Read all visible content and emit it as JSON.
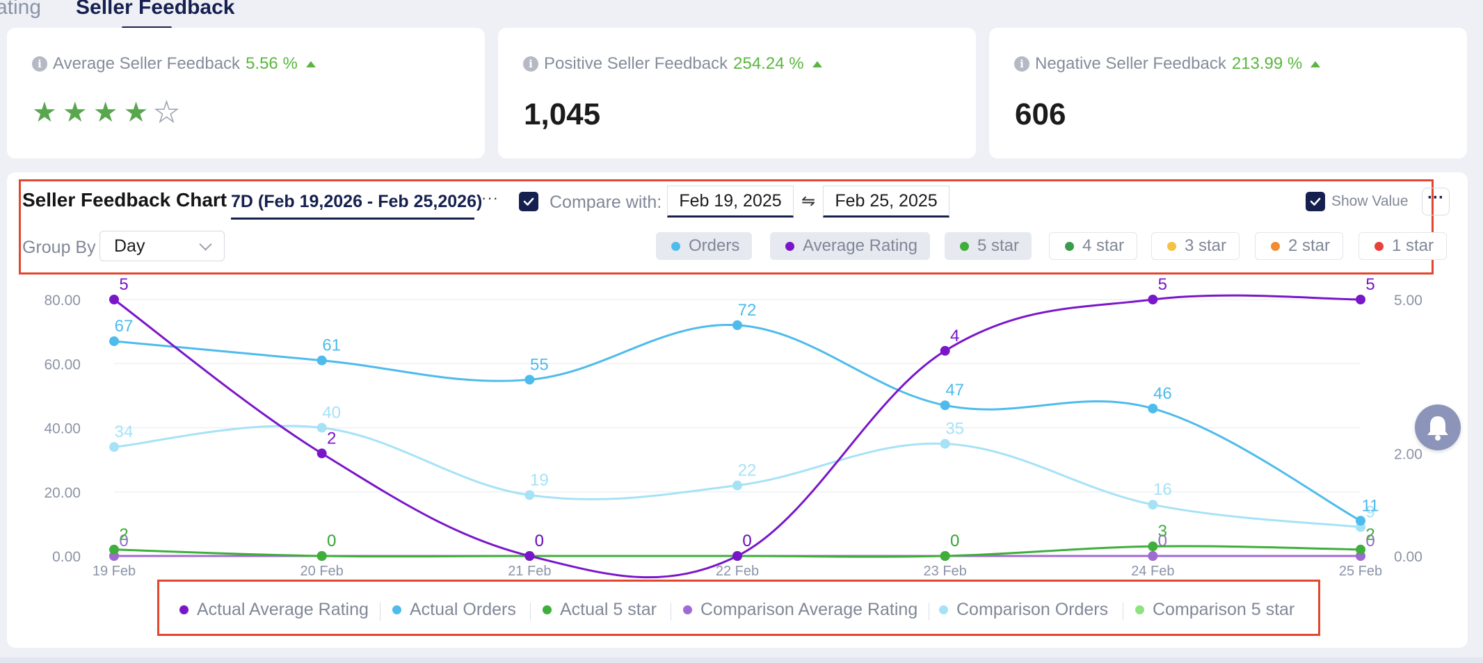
{
  "tabs": [
    {
      "label": "ating",
      "active": false
    },
    {
      "label": "Seller Feedback",
      "active": true
    }
  ],
  "stats": {
    "average": {
      "title": "Average Seller Feedback",
      "change": "5.56 %",
      "rating_stars": 4,
      "max_stars": 5
    },
    "positive": {
      "title": "Positive Seller Feedback",
      "change": "254.24 %",
      "value": "1,045"
    },
    "negative": {
      "title": "Negative Seller Feedback",
      "change": "213.99 %",
      "value": "606"
    }
  },
  "chart_panel": {
    "title": "Seller Feedback Chart",
    "range_label": "7D (Feb 19,2026 - Feb 25,2026)",
    "range_menu": "···",
    "compare_checked": true,
    "compare_label": "Compare with:",
    "compare_start": "Feb 19, 2025",
    "compare_swap": "⇋",
    "compare_end": "Feb 25, 2025",
    "show_value_label": "Show Value",
    "show_value_checked": true,
    "more_label": "···",
    "group_by_label": "Group By",
    "group_by_value": "Day",
    "chips": [
      {
        "label": "Orders",
        "color": "#4dbbec",
        "active": true
      },
      {
        "label": "Average Rating",
        "color": "#7a16c9",
        "active": true
      },
      {
        "label": "5 star",
        "color": "#3fae3a",
        "active": true
      },
      {
        "label": "4 star",
        "color": "#3b9b4c",
        "active": false
      },
      {
        "label": "3 star",
        "color": "#f5c242",
        "active": false
      },
      {
        "label": "2 star",
        "color": "#f18c32",
        "active": false
      },
      {
        "label": "1 star",
        "color": "#e8433a",
        "active": false
      }
    ]
  },
  "chart_data": {
    "type": "line",
    "x": [
      "19 Feb",
      "20 Feb",
      "21 Feb",
      "22 Feb",
      "23 Feb",
      "24 Feb",
      "25 Feb"
    ],
    "y_left": {
      "ticks": [
        "0.00",
        "20.00",
        "40.00",
        "60.00",
        "80.00"
      ],
      "range": [
        0,
        80
      ]
    },
    "y_right": {
      "ticks": [
        "0.00",
        "2.00",
        "5.00"
      ],
      "range": [
        0,
        5
      ]
    },
    "grid": true,
    "legend_position": "bottom",
    "series": [
      {
        "name": "Actual Average Rating",
        "color": "#7a16c9",
        "axis": "right",
        "values": [
          5,
          2,
          0,
          0,
          4,
          5,
          5
        ]
      },
      {
        "name": "Actual Orders",
        "color": "#4dbbec",
        "axis": "left",
        "values": [
          67,
          61,
          55,
          72,
          47,
          46,
          11
        ]
      },
      {
        "name": "Actual 5 star",
        "color": "#3fae3a",
        "axis": "left",
        "values": [
          2,
          0,
          0,
          0,
          0,
          3,
          2
        ]
      },
      {
        "name": "Comparison Average Rating",
        "color": "#a06ad4",
        "axis": "right",
        "values": [
          0,
          0,
          0,
          0,
          0,
          0,
          0
        ]
      },
      {
        "name": "Comparison Orders",
        "color": "#a6e2f6",
        "axis": "left",
        "values": [
          34,
          40,
          19,
          22,
          35,
          16,
          9
        ]
      },
      {
        "name": "Comparison 5 star",
        "color": "#8ee37e",
        "axis": "left",
        "values": [
          0,
          0,
          0,
          0,
          0,
          0,
          0
        ]
      }
    ]
  },
  "colors": {
    "accent": "#16204f",
    "positive": "#5ab63e",
    "highlight_box": "#e2462f"
  },
  "icons": {
    "info": "info-icon",
    "trend": "up-arrow-icon",
    "notification": "bell-icon",
    "checkbox": "check-icon"
  }
}
